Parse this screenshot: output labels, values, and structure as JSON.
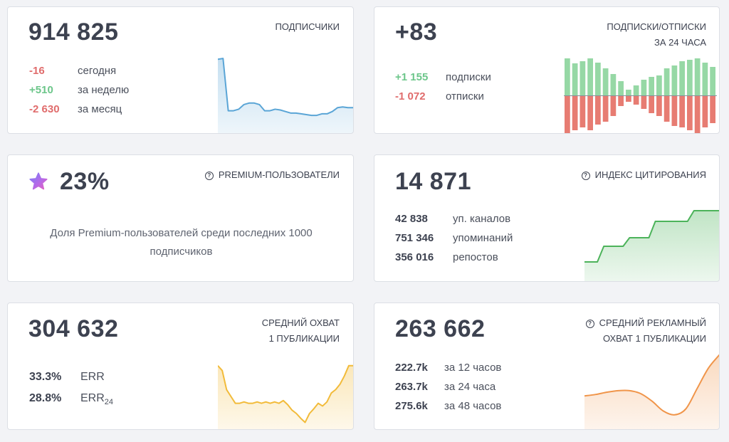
{
  "subscribers": {
    "title": "ПОДПИСЧИКИ",
    "total": "914 825",
    "stats": [
      {
        "value": "-16",
        "label": "сегодня",
        "tone": "red"
      },
      {
        "value": "+510",
        "label": "за неделю",
        "tone": "green"
      },
      {
        "value": "-2 630",
        "label": "за месяц",
        "tone": "red"
      }
    ]
  },
  "subs_unsubs": {
    "title_line1": "ПОДПИСКИ/ОТПИСКИ",
    "title_line2": "ЗА 24 ЧАСА",
    "total": "+83",
    "stats": [
      {
        "value": "+1 155",
        "label": "подписки",
        "tone": "green"
      },
      {
        "value": "-1 072",
        "label": "отписки",
        "tone": "red"
      }
    ]
  },
  "premium": {
    "title": "PREMIUM-ПОЛЬЗОВАТЕЛИ",
    "value": "23%",
    "description_line1": "Доля Premium-пользователей среди последних 1000",
    "description_line2": "подписчиков"
  },
  "citation": {
    "title": "ИНДЕКС ЦИТИРОВАНИЯ",
    "total": "14 871",
    "stats": [
      {
        "value": "42 838",
        "label": "уп. каналов"
      },
      {
        "value": "751 346",
        "label": "упоминаний"
      },
      {
        "value": "356 016",
        "label": "репостов"
      }
    ]
  },
  "reach": {
    "title_line1": "СРЕДНИЙ ОХВАТ",
    "title_line2": "1 ПУБЛИКАЦИИ",
    "total": "304 632",
    "err_value": "33.3%",
    "err_label": "ERR",
    "err24_value": "28.8%",
    "err24_label": "ERR",
    "err24_sub": "24"
  },
  "ad_reach": {
    "title_line1": "СРЕДНИЙ РЕКЛАМНЫЙ",
    "title_line2": "ОХВАТ 1 ПУБЛИКАЦИИ",
    "total": "263 662",
    "stats": [
      {
        "value": "222.7k",
        "label": "за 12 часов"
      },
      {
        "value": "263.7k",
        "label": "за 24 часа"
      },
      {
        "value": "275.6k",
        "label": "за 48 часов"
      }
    ]
  },
  "chart_data": [
    {
      "type": "area",
      "name": "subscribers-trend",
      "color": "#5aa5d6",
      "values": [
        97,
        98,
        30,
        30,
        32,
        38,
        40,
        40,
        38,
        30,
        30,
        32,
        31,
        29,
        27,
        27,
        26,
        25,
        24,
        24,
        26,
        26,
        29,
        34,
        35,
        34,
        34
      ]
    },
    {
      "type": "bar",
      "name": "subs-unsubs-24h",
      "series": [
        {
          "name": "подписки",
          "color": "#96d8a5",
          "values": [
            52,
            45,
            48,
            52,
            46,
            38,
            30,
            20,
            8,
            14,
            22,
            26,
            28,
            38,
            42,
            48,
            50,
            52,
            46,
            40
          ]
        },
        {
          "name": "отписки",
          "color": "#e77c72",
          "values": [
            52,
            48,
            44,
            48,
            40,
            36,
            28,
            14,
            8,
            12,
            18,
            24,
            28,
            36,
            42,
            44,
            48,
            52,
            44,
            38
          ]
        }
      ]
    },
    {
      "type": "line",
      "name": "citation-index",
      "color": "#4cb35a",
      "values": [
        28,
        28,
        28,
        50,
        50,
        50,
        50,
        62,
        62,
        62,
        62,
        85,
        85,
        85,
        85,
        85,
        85,
        100,
        100,
        100,
        100,
        100
      ]
    },
    {
      "type": "area",
      "name": "reach-trend",
      "color": "#f2bb3a",
      "values": [
        95,
        88,
        60,
        50,
        40,
        40,
        42,
        40,
        40,
        42,
        40,
        42,
        40,
        42,
        40,
        44,
        38,
        30,
        25,
        18,
        12,
        25,
        32,
        40,
        36,
        42,
        55,
        60,
        68,
        80,
        95,
        95
      ]
    },
    {
      "type": "area",
      "name": "ad-reach-trend",
      "color": "#f0954a",
      "values": [
        45,
        47,
        50,
        52,
        52,
        48,
        38,
        25,
        20,
        28,
        55,
        82,
        100
      ]
    }
  ]
}
